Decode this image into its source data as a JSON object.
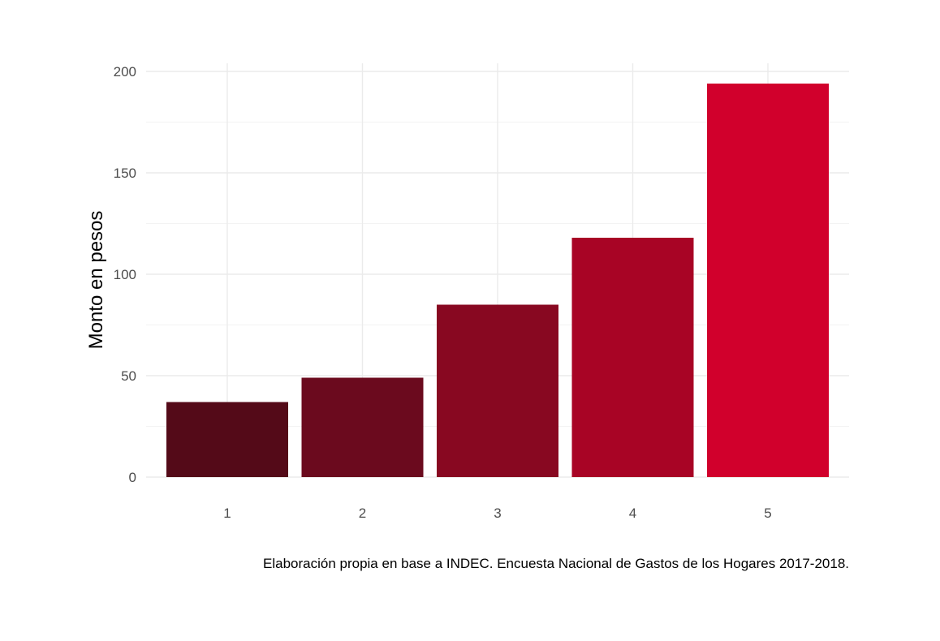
{
  "chart_data": {
    "type": "bar",
    "categories": [
      "1",
      "2",
      "3",
      "4",
      "5"
    ],
    "values": [
      37,
      49,
      85,
      118,
      194
    ],
    "colors": [
      "#540a18",
      "#6b0a1e",
      "#880821",
      "#a80425",
      "#d1002c"
    ],
    "title": "",
    "xlabel": "",
    "ylabel": "Monto en pesos",
    "ylim": [
      0,
      200
    ],
    "yticks": [
      0,
      50,
      100,
      150,
      200
    ],
    "grid": true,
    "caption": "Elaboración propia en base a INDEC. Encuesta Nacional de Gastos de los Hogares 2017-2018."
  }
}
